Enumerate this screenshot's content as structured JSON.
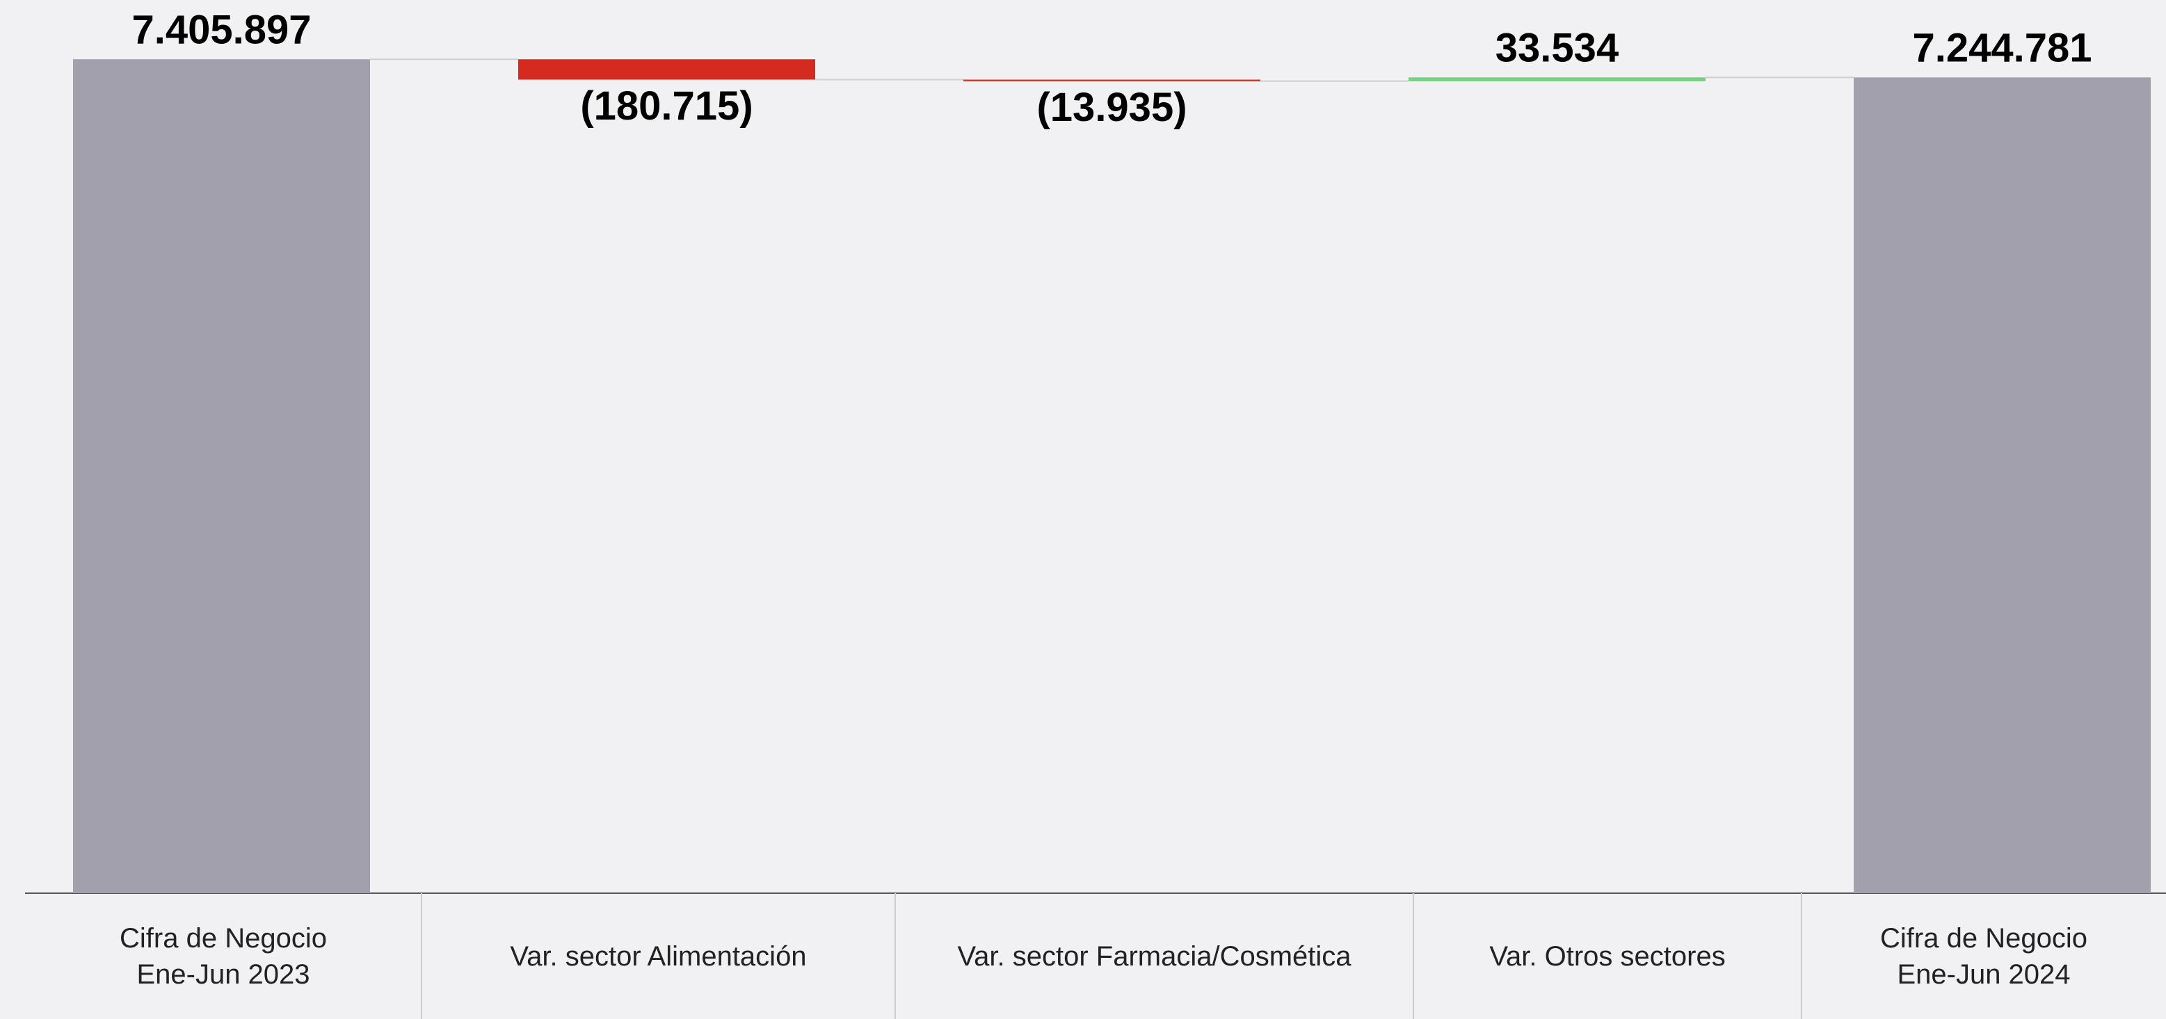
{
  "chart_data": {
    "type": "waterfall",
    "categories": [
      "Cifra de Negocio\nEne-Jun 2023",
      "Var. sector Alimentación",
      "Var. sector Farmacia/Cosmética",
      "Var. Otros sectores",
      "Cifra de Negocio\nEne-Jun 2024"
    ],
    "values": [
      7405897,
      -180715,
      -13935,
      33534,
      7244781
    ],
    "value_labels": [
      "7.405.897",
      "(180.715)",
      "(13.935)",
      "33.534",
      "7.244.781"
    ],
    "totals": [
      0,
      4
    ],
    "colors": {
      "total": "#a1a0ac",
      "increase": "#72d07f",
      "decrease": "#d52a20"
    },
    "ylim": [
      0,
      7500000
    ]
  }
}
